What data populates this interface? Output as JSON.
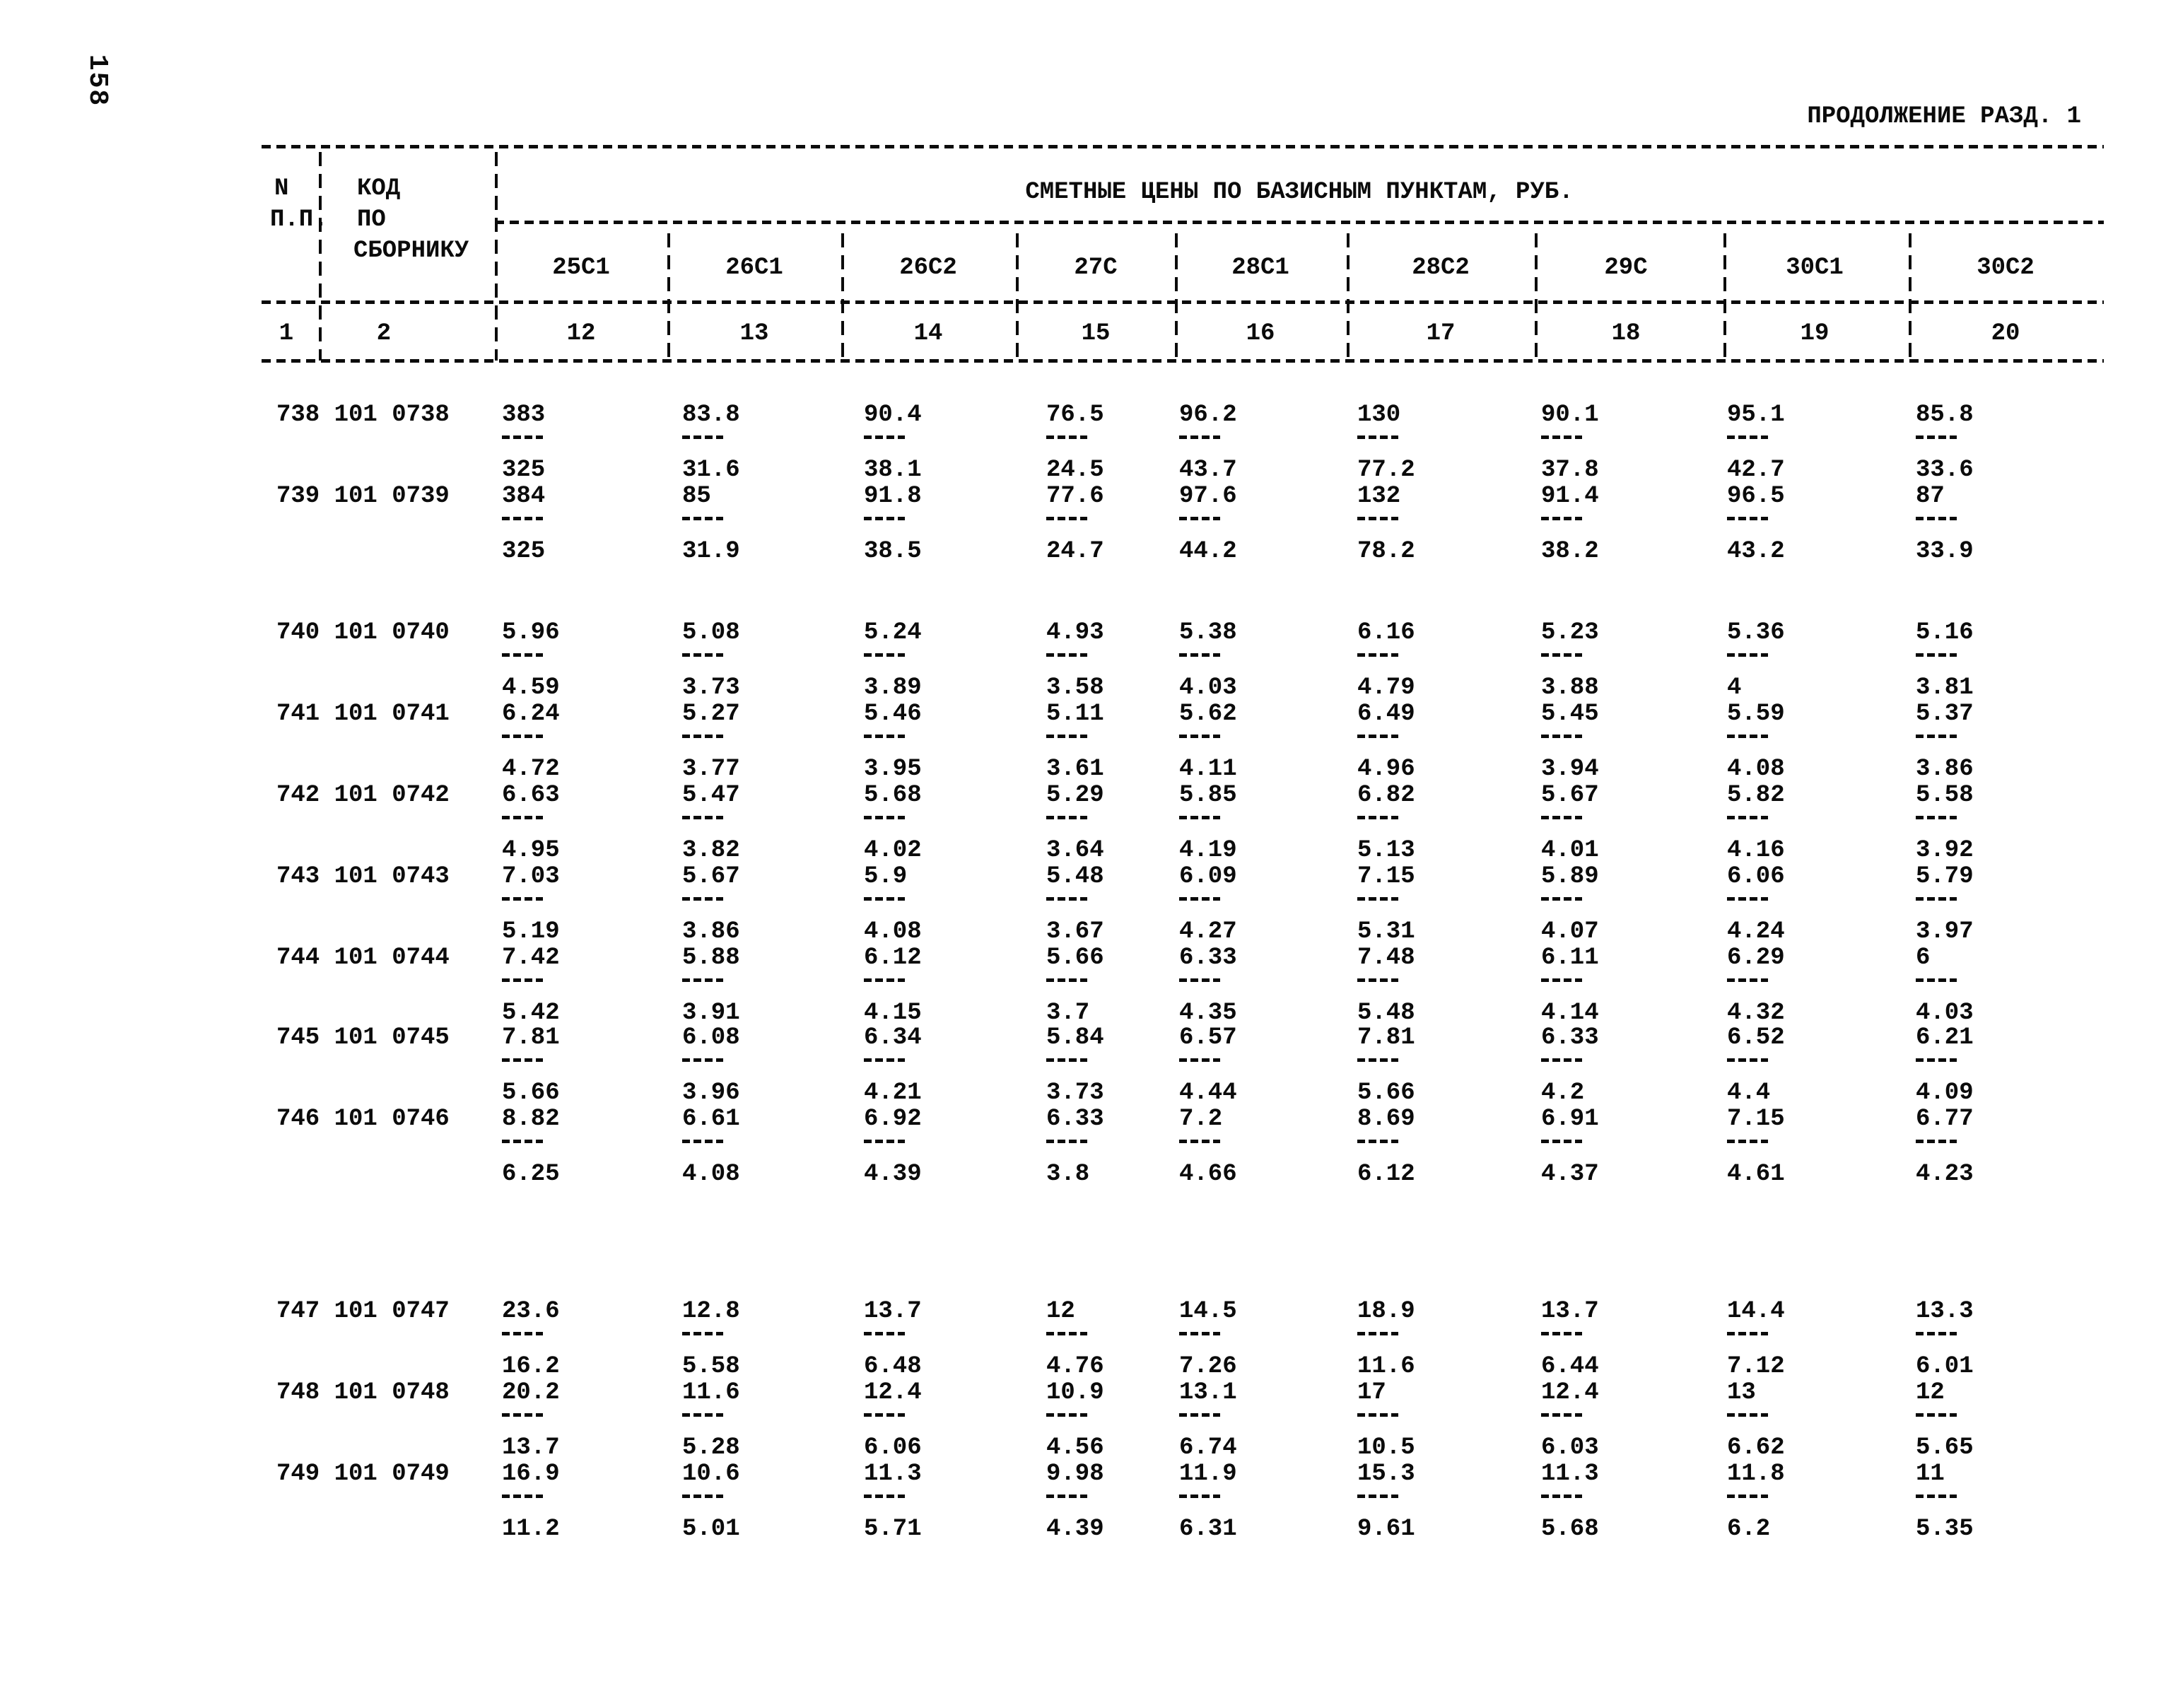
{
  "page": {
    "number": "158",
    "continuation": "ПРОДОЛЖЕНИЕ РАЗД. 1",
    "background_color": "#ffffff",
    "ink_color": "#0b0b0b"
  },
  "table": {
    "span_header": "СМЕТНЫЕ ЦЕНЫ ПО БАЗИСНЫМ ПУНКТАМ, РУБ.",
    "row_header": {
      "col1": [
        "N",
        "П.П."
      ],
      "col1_number": "1",
      "col2": [
        "КОД",
        "ПО",
        "СБОРНИКУ"
      ],
      "col2_number": "2"
    },
    "columns": [
      {
        "label": "25С1",
        "number": "12"
      },
      {
        "label": "26С1",
        "number": "13"
      },
      {
        "label": "26С2",
        "number": "14"
      },
      {
        "label": "27С",
        "number": "15"
      },
      {
        "label": "28С1",
        "number": "16"
      },
      {
        "label": "28С2",
        "number": "17"
      },
      {
        "label": "29С",
        "number": "18"
      },
      {
        "label": "30С1",
        "number": "19"
      },
      {
        "label": "30С2",
        "number": "20"
      }
    ],
    "rows": [
      {
        "code": "738 101 0738",
        "cells": [
          [
            "383",
            "325"
          ],
          [
            "83.8",
            "31.6"
          ],
          [
            "90.4",
            "38.1"
          ],
          [
            "76.5",
            "24.5"
          ],
          [
            "96.2",
            "43.7"
          ],
          [
            "130",
            "77.2"
          ],
          [
            "90.1",
            "37.8"
          ],
          [
            "95.1",
            "42.7"
          ],
          [
            "85.8",
            "33.6"
          ]
        ]
      },
      {
        "code": "739 101 0739",
        "cells": [
          [
            "384",
            "325"
          ],
          [
            "85",
            "31.9"
          ],
          [
            "91.8",
            "38.5"
          ],
          [
            "77.6",
            "24.7"
          ],
          [
            "97.6",
            "44.2"
          ],
          [
            "132",
            "78.2"
          ],
          [
            "91.4",
            "38.2"
          ],
          [
            "96.5",
            "43.2"
          ],
          [
            "87",
            "33.9"
          ]
        ]
      },
      {
        "code": "740 101 0740",
        "cells": [
          [
            "5.96",
            "4.59"
          ],
          [
            "5.08",
            "3.73"
          ],
          [
            "5.24",
            "3.89"
          ],
          [
            "4.93",
            "3.58"
          ],
          [
            "5.38",
            "4.03"
          ],
          [
            "6.16",
            "4.79"
          ],
          [
            "5.23",
            "3.88"
          ],
          [
            "5.36",
            "4"
          ],
          [
            "5.16",
            "3.81"
          ]
        ]
      },
      {
        "code": "741 101 0741",
        "cells": [
          [
            "6.24",
            "4.72"
          ],
          [
            "5.27",
            "3.77"
          ],
          [
            "5.46",
            "3.95"
          ],
          [
            "5.11",
            "3.61"
          ],
          [
            "5.62",
            "4.11"
          ],
          [
            "6.49",
            "4.96"
          ],
          [
            "5.45",
            "3.94"
          ],
          [
            "5.59",
            "4.08"
          ],
          [
            "5.37",
            "3.86"
          ]
        ]
      },
      {
        "code": "742 101 0742",
        "cells": [
          [
            "6.63",
            "4.95"
          ],
          [
            "5.47",
            "3.82"
          ],
          [
            "5.68",
            "4.02"
          ],
          [
            "5.29",
            "3.64"
          ],
          [
            "5.85",
            "4.19"
          ],
          [
            "6.82",
            "5.13"
          ],
          [
            "5.67",
            "4.01"
          ],
          [
            "5.82",
            "4.16"
          ],
          [
            "5.58",
            "3.92"
          ]
        ]
      },
      {
        "code": "743 101 0743",
        "cells": [
          [
            "7.03",
            "5.19"
          ],
          [
            "5.67",
            "3.86"
          ],
          [
            "5.9",
            "4.08"
          ],
          [
            "5.48",
            "3.67"
          ],
          [
            "6.09",
            "4.27"
          ],
          [
            "7.15",
            "5.31"
          ],
          [
            "5.89",
            "4.07"
          ],
          [
            "6.06",
            "4.24"
          ],
          [
            "5.79",
            "3.97"
          ]
        ]
      },
      {
        "code": "744 101 0744",
        "cells": [
          [
            "7.42",
            "5.42"
          ],
          [
            "5.88",
            "3.91"
          ],
          [
            "6.12",
            "4.15"
          ],
          [
            "5.66",
            "3.7"
          ],
          [
            "6.33",
            "4.35"
          ],
          [
            "7.48",
            "5.48"
          ],
          [
            "6.11",
            "4.14"
          ],
          [
            "6.29",
            "4.32"
          ],
          [
            "6",
            "4.03"
          ]
        ]
      },
      {
        "code": "745 101 0745",
        "cells": [
          [
            "7.81",
            "5.66"
          ],
          [
            "6.08",
            "3.96"
          ],
          [
            "6.34",
            "4.21"
          ],
          [
            "5.84",
            "3.73"
          ],
          [
            "6.57",
            "4.44"
          ],
          [
            "7.81",
            "5.66"
          ],
          [
            "6.33",
            "4.2"
          ],
          [
            "6.52",
            "4.4"
          ],
          [
            "6.21",
            "4.09"
          ]
        ]
      },
      {
        "code": "746 101 0746",
        "cells": [
          [
            "8.82",
            "6.25"
          ],
          [
            "6.61",
            "4.08"
          ],
          [
            "6.92",
            "4.39"
          ],
          [
            "6.33",
            "3.8"
          ],
          [
            "7.2",
            "4.66"
          ],
          [
            "8.69",
            "6.12"
          ],
          [
            "6.91",
            "4.37"
          ],
          [
            "7.15",
            "4.61"
          ],
          [
            "6.77",
            "4.23"
          ]
        ]
      },
      {
        "code": "747 101 0747",
        "cells": [
          [
            "23.6",
            "16.2"
          ],
          [
            "12.8",
            "5.58"
          ],
          [
            "13.7",
            "6.48"
          ],
          [
            "12",
            "4.76"
          ],
          [
            "14.5",
            "7.26"
          ],
          [
            "18.9",
            "11.6"
          ],
          [
            "13.7",
            "6.44"
          ],
          [
            "14.4",
            "7.12"
          ],
          [
            "13.3",
            "6.01"
          ]
        ]
      },
      {
        "code": "748 101 0748",
        "cells": [
          [
            "20.2",
            "13.7"
          ],
          [
            "11.6",
            "5.28"
          ],
          [
            "12.4",
            "6.06"
          ],
          [
            "10.9",
            "4.56"
          ],
          [
            "13.1",
            "6.74"
          ],
          [
            "17",
            "10.5"
          ],
          [
            "12.4",
            "6.03"
          ],
          [
            "13",
            "6.62"
          ],
          [
            "12",
            "5.65"
          ]
        ]
      },
      {
        "code": "749 101 0749",
        "cells": [
          [
            "16.9",
            "11.2"
          ],
          [
            "10.6",
            "5.01"
          ],
          [
            "11.3",
            "5.71"
          ],
          [
            "9.98",
            "4.39"
          ],
          [
            "11.9",
            "6.31"
          ],
          [
            "15.3",
            "9.61"
          ],
          [
            "11.3",
            "5.68"
          ],
          [
            "11.8",
            "6.2"
          ],
          [
            "11",
            "5.35"
          ]
        ]
      }
    ]
  }
}
